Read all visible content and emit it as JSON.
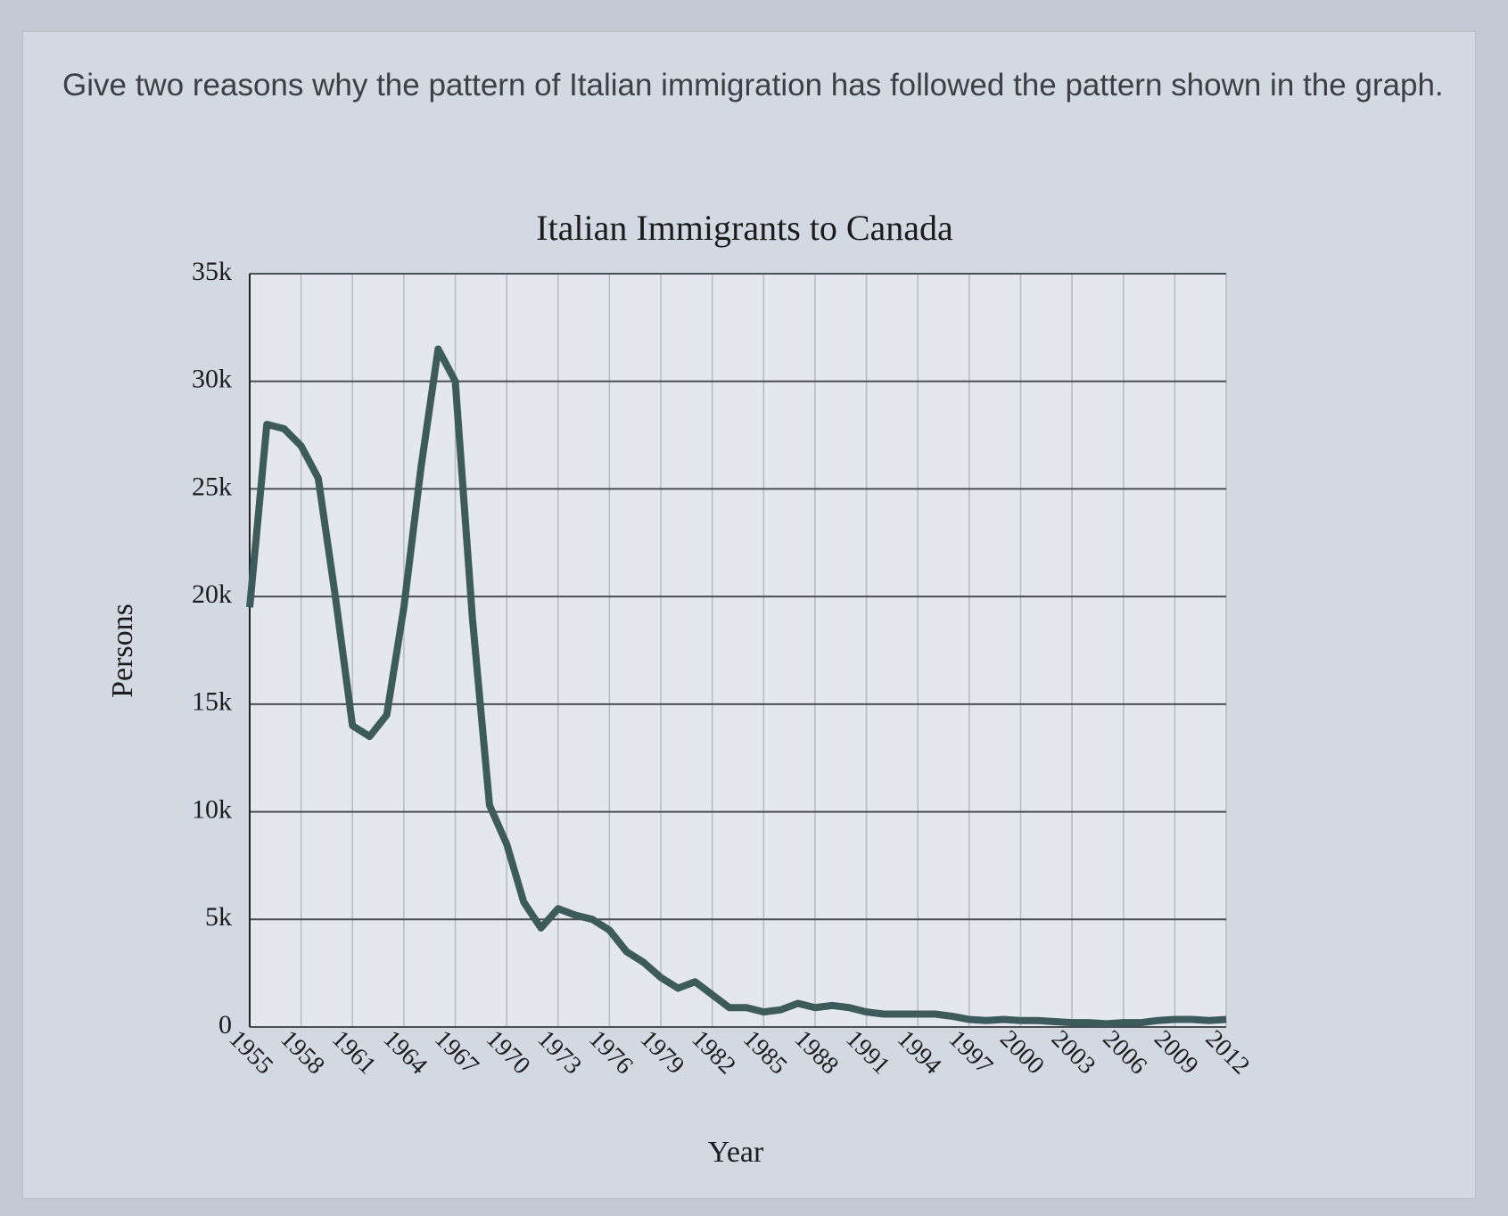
{
  "question": "Give two reasons why the pattern of Italian immigration has followed the pattern shown in the graph.",
  "chart_data": {
    "type": "line",
    "title": "Italian Immigrants to Canada",
    "x_label": "Year",
    "y_label": "Persons",
    "x": [
      1955,
      1956,
      1957,
      1958,
      1959,
      1960,
      1961,
      1962,
      1963,
      1964,
      1965,
      1966,
      1967,
      1968,
      1969,
      1970,
      1971,
      1972,
      1973,
      1974,
      1975,
      1976,
      1977,
      1978,
      1979,
      1980,
      1981,
      1982,
      1983,
      1984,
      1985,
      1986,
      1987,
      1988,
      1989,
      1990,
      1991,
      1992,
      1993,
      1994,
      1995,
      1996,
      1997,
      1998,
      1999,
      2000,
      2001,
      2002,
      2003,
      2004,
      2005,
      2006,
      2007,
      2008,
      2009,
      2010,
      2011,
      2012
    ],
    "values": [
      19500,
      28000,
      27800,
      27000,
      25500,
      20000,
      14000,
      13500,
      14500,
      19500,
      26000,
      31500,
      30000,
      19000,
      10300,
      8500,
      5800,
      4600,
      5500,
      5200,
      5000,
      4500,
      3500,
      3000,
      2300,
      1800,
      2100,
      1500,
      900,
      900,
      700,
      800,
      1100,
      900,
      1000,
      900,
      700,
      600,
      600,
      600,
      600,
      500,
      350,
      300,
      350,
      300,
      300,
      250,
      200,
      200,
      150,
      200,
      200,
      300,
      350,
      350,
      300,
      350
    ],
    "color": "#3e5b5b",
    "xlim": [
      1955,
      2012
    ],
    "xticks": [
      1955,
      1958,
      1961,
      1964,
      1967,
      1970,
      1973,
      1976,
      1979,
      1982,
      1985,
      1988,
      1991,
      1994,
      1997,
      2000,
      2003,
      2006,
      2009,
      2012
    ],
    "ylim": [
      0,
      35000
    ],
    "yticks": [
      0,
      {
        "value": 5000,
        "label": "5k"
      },
      {
        "value": 10000,
        "label": "10k"
      },
      {
        "value": 15000,
        "label": "15k"
      },
      {
        "value": 20000,
        "label": "20k"
      },
      {
        "value": 25000,
        "label": "25k"
      },
      {
        "value": 30000,
        "label": "30k"
      },
      {
        "value": 35000,
        "label": "35k"
      }
    ],
    "grid": true
  }
}
